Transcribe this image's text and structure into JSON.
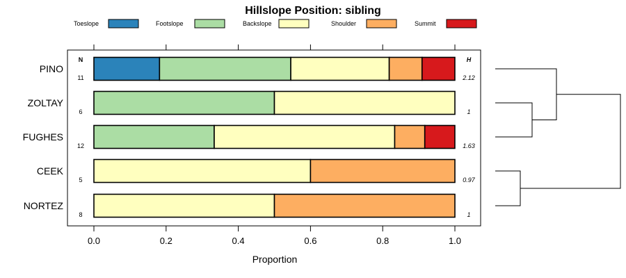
{
  "chart_data": {
    "type": "bar",
    "orientation": "horizontal",
    "stacked": true,
    "title": "Hillslope Position: sibling",
    "xlabel": "Proportion",
    "xlim": [
      0,
      1
    ],
    "x_ticks": [
      "0.0",
      "0.2",
      "0.4",
      "0.6",
      "0.8",
      "1.0"
    ],
    "legend_position": "top",
    "n_header": "N",
    "h_header": "H",
    "categories": [
      "PINO",
      "ZOLTAY",
      "FUGHES",
      "CEEK",
      "NORTEZ"
    ],
    "n_values": [
      "11",
      "6",
      "12",
      "5",
      "8"
    ],
    "h_values": [
      "2.12",
      "1",
      "1.63",
      "0.97",
      "1"
    ],
    "series": [
      {
        "name": "Toeslope",
        "color": "#2b83ba",
        "values": [
          0.1818,
          0,
          0,
          0,
          0
        ]
      },
      {
        "name": "Footslope",
        "color": "#abdda4",
        "values": [
          0.3636,
          0.5,
          0.3333,
          0,
          0
        ]
      },
      {
        "name": "Backslope",
        "color": "#ffffbf",
        "values": [
          0.2727,
          0.5,
          0.5,
          0.6,
          0.5
        ]
      },
      {
        "name": "Shoulder",
        "color": "#fdae61",
        "values": [
          0.0909,
          0,
          0.0833,
          0.4,
          0.5
        ]
      },
      {
        "name": "Summit",
        "color": "#d7191c",
        "values": [
          0.0909,
          0,
          0.0833,
          0,
          0
        ]
      }
    ],
    "dendrogram_merges": [
      [
        "ZOLTAY",
        "FUGHES"
      ],
      [
        "PINO",
        "ZOLTAY+FUGHES"
      ],
      [
        "CEEK",
        "NORTEZ"
      ],
      [
        "PINO+ZOLTAY+FUGHES",
        "CEEK+NORTEZ"
      ]
    ]
  }
}
